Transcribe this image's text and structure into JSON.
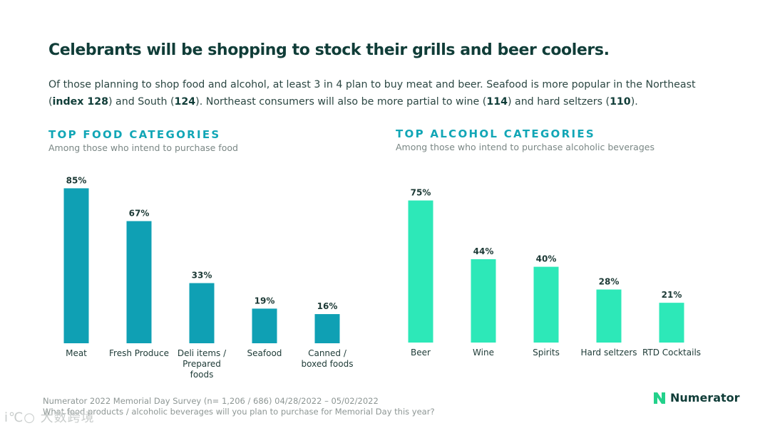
{
  "header": {
    "title": "Celebrants will be shopping to stock their grills and beer coolers.",
    "subtitle_parts": [
      {
        "text": "Of those planning to shop food and alcohol, at least 3 in 4 plan to buy meat and beer. Seafood is more popular in the Northeast (",
        "bold": false
      },
      {
        "text": "index 128",
        "bold": true
      },
      {
        "text": ") and South (",
        "bold": false
      },
      {
        "text": "124",
        "bold": true
      },
      {
        "text": "). Northeast consumers will also be more partial to wine (",
        "bold": false
      },
      {
        "text": "114",
        "bold": true
      },
      {
        "text": ") and hard seltzers (",
        "bold": false
      },
      {
        "text": "110",
        "bold": true
      },
      {
        "text": ").",
        "bold": false
      }
    ]
  },
  "colors": {
    "food_bar": "#0fa0b4",
    "alcohol_bar": "#2de8b8",
    "heading": "#11a6b6",
    "brand_mark": "#23d18b"
  },
  "chart_data": [
    {
      "type": "bar",
      "title": "TOP FOOD CATEGORIES",
      "subtitle": "Among those who intend to purchase food",
      "categories": [
        "Meat",
        "Fresh Produce",
        "Deli items / Prepared foods",
        "Seafood",
        "Canned / boxed foods"
      ],
      "category_lines": [
        [
          "Meat"
        ],
        [
          "Fresh Produce"
        ],
        [
          "Deli items /",
          "Prepared",
          "foods"
        ],
        [
          "Seafood"
        ],
        [
          "Canned /",
          "boxed foods"
        ]
      ],
      "values": [
        85,
        67,
        33,
        19,
        16
      ],
      "value_labels": [
        "85%",
        "67%",
        "33%",
        "19%",
        "16%"
      ],
      "unit": "%",
      "ylim": [
        0,
        100
      ],
      "grid": false,
      "legend": "none"
    },
    {
      "type": "bar",
      "title": "TOP ALCOHOL CATEGORIES",
      "subtitle": "Among those who intend to purchase alcoholic beverages",
      "categories": [
        "Beer",
        "Wine",
        "Spirits",
        "Hard seltzers",
        "RTD Cocktails"
      ],
      "category_lines": [
        [
          "Beer"
        ],
        [
          "Wine"
        ],
        [
          "Spirits"
        ],
        [
          "Hard seltzers"
        ],
        [
          "RTD Cocktails"
        ]
      ],
      "values": [
        75,
        44,
        40,
        28,
        21
      ],
      "value_labels": [
        "75%",
        "44%",
        "40%",
        "28%",
        "21%"
      ],
      "unit": "%",
      "ylim": [
        0,
        100
      ],
      "grid": false,
      "legend": "none"
    }
  ],
  "footer": {
    "source": "Numerator 2022 Memorial Day Survey (n= 1,206 / 686) 04/28/2022 – 05/02/2022",
    "question": "What food products / alcoholic beverages will you plan to purchase for Memorial Day this year?"
  },
  "brand": {
    "name": "Numerator",
    "icon": "numerator-logo-icon"
  },
  "watermark": "i℃○ 大数跨境"
}
